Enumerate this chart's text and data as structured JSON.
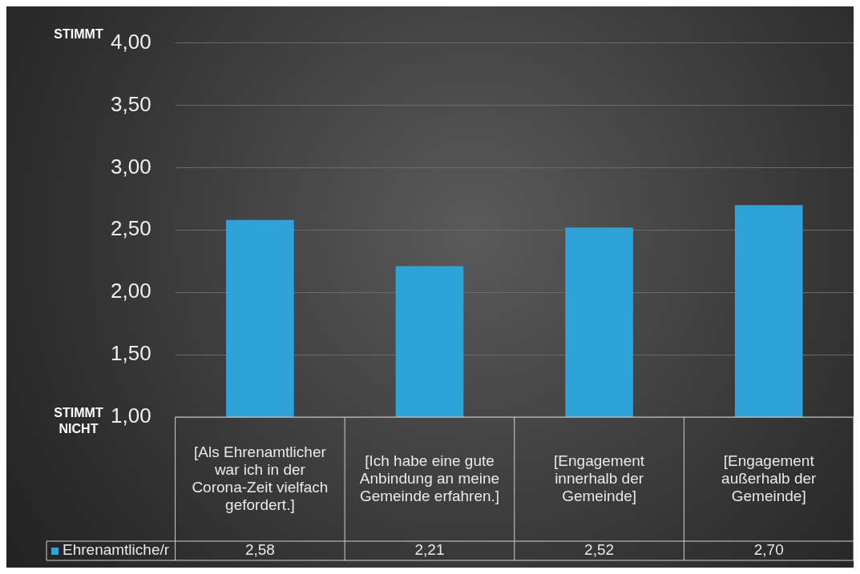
{
  "chart_data": {
    "type": "bar",
    "categories": [
      "[Als Ehrenamtlicher war ich in der Corona-Zeit vielfach gefordert.]",
      "[Ich habe eine gute Anbindung an meine Gemeinde erfahren.]",
      "[Engagement innerhalb der Gemeinde]",
      "[Engagement außerhalb der Gemeinde]"
    ],
    "series": [
      {
        "name": "Ehrenamtliche/r",
        "color": "#2ea3d8",
        "values": [
          2.58,
          2.21,
          2.52,
          2.7
        ],
        "value_labels": [
          "2,58",
          "2,21",
          "2,52",
          "2,70"
        ]
      }
    ],
    "ylim": [
      1,
      4
    ],
    "yticks": [
      {
        "value": 1,
        "label": "1,00"
      },
      {
        "value": 1.5,
        "label": "1,50"
      },
      {
        "value": 2,
        "label": "2,00"
      },
      {
        "value": 2.5,
        "label": "2,50"
      },
      {
        "value": 3,
        "label": "3,00"
      },
      {
        "value": 3.5,
        "label": "3,50"
      },
      {
        "value": 4,
        "label": "4,00"
      }
    ],
    "annotations": [
      "STIMMT",
      "STIMMT NICHT"
    ],
    "grid": "y",
    "legend": "bottom"
  }
}
